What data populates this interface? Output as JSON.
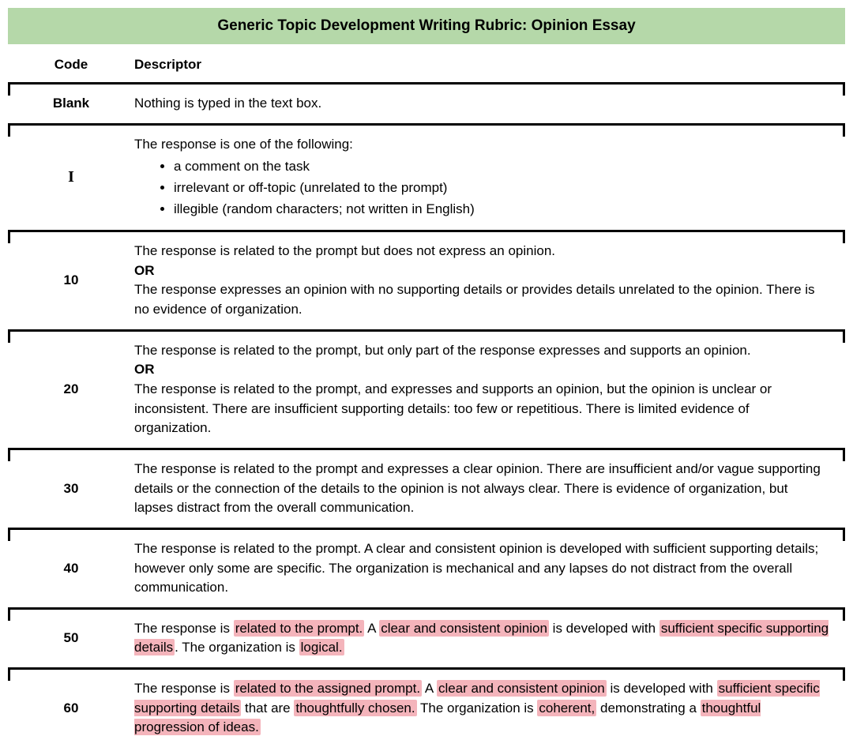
{
  "title": "Generic Topic Development Writing Rubric: Opinion Essay",
  "headers": {
    "code": "Code",
    "descriptor": "Descriptor"
  },
  "highlight_color": "#f4b4bb",
  "title_bg": "#b5d8a9",
  "rows": {
    "blank": {
      "code": "Blank",
      "desc": "Nothing is typed in the text box."
    },
    "i": {
      "code": "I",
      "intro": "The response is one of the following:",
      "bullets": [
        "a comment on the task",
        "irrelevant or off-topic (unrelated to the prompt)",
        "illegible (random characters; not written in English)"
      ]
    },
    "r10": {
      "code": "10",
      "p1": "The response is related to the prompt but does not express an opinion.",
      "or": "OR",
      "p2": "The response expresses an opinion with no supporting details or provides details unrelated to the opinion. There is no evidence of organization."
    },
    "r20": {
      "code": "20",
      "p1": "The response is related to the prompt, but only part of the response expresses and supports an opinion.",
      "or": "OR",
      "p2": "The response is related to the prompt, and expresses and supports an opinion, but the opinion is unclear or inconsistent. There are insufficient supporting details: too few or repetitious. There is limited evidence of organization."
    },
    "r30": {
      "code": "30",
      "desc": "The response is related to the prompt and expresses a clear opinion. There are insufficient and/or vague supporting details or the connection of the details to the opinion is not always clear. There is evidence of organization, but lapses distract from the overall communication."
    },
    "r40": {
      "code": "40",
      "desc": "The response is related to the prompt. A clear and consistent opinion is developed with sufficient supporting details; however only some are specific. The organization is mechanical and any lapses do not distract from the overall communication."
    },
    "r50": {
      "code": "50",
      "t0": "The response is ",
      "h0": "related to the prompt.",
      "t1": " A ",
      "h1": "clear and consistent opinion",
      "t2": " is developed with ",
      "h2": "sufficient specific supporting details",
      "t3": ". The organization is ",
      "h3": "logical.",
      "t4": ""
    },
    "r60": {
      "code": "60",
      "t0": "The response is ",
      "h0": "related to the assigned prompt.",
      "t1": " A ",
      "h1": "clear and consistent opinion",
      "t2": " is developed with ",
      "h2": "sufficient specific supporting details",
      "t3": " that are ",
      "h3": "thoughtfully chosen.",
      "t4": " The organization is ",
      "h4": "coherent,",
      "t5": " demonstrating a ",
      "h5": "thoughtful progression of ideas.",
      "t6": ""
    }
  }
}
